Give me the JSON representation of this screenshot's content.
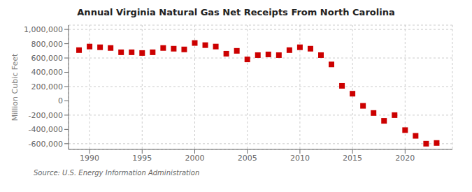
{
  "chart_data": {
    "type": "scatter",
    "title": "Annual Virginia Natural Gas Net Receipts From North Carolina",
    "y_label": "Million Cubic Feet",
    "annotations": [
      "Source: U.S. Energy Information Administration"
    ],
    "x": [
      1989,
      1990,
      1991,
      1992,
      1993,
      1994,
      1995,
      1996,
      1997,
      1998,
      1999,
      2000,
      2001,
      2002,
      2003,
      2004,
      2005,
      2006,
      2007,
      2008,
      2009,
      2010,
      2011,
      2012,
      2013,
      2014,
      2015,
      2016,
      2017,
      2018,
      2019,
      2020,
      2021,
      2022,
      2023
    ],
    "values": [
      710000,
      760000,
      750000,
      740000,
      680000,
      680000,
      670000,
      680000,
      740000,
      730000,
      720000,
      810000,
      780000,
      760000,
      660000,
      700000,
      580000,
      640000,
      650000,
      640000,
      710000,
      750000,
      730000,
      640000,
      510000,
      210000,
      100000,
      -70000,
      -170000,
      -280000,
      -200000,
      -410000,
      -490000,
      -600000,
      -590000
    ],
    "color": "#cc0000",
    "marker": "square",
    "xlim": [
      1988.0,
      2024.5
    ],
    "xticks": [
      1990,
      1995,
      2000,
      2005,
      2010,
      2015,
      2020
    ],
    "ylim": [
      -680000,
      1060000
    ],
    "yticks": [
      {
        "value": -600000,
        "label": "-600,000"
      },
      {
        "value": -400000,
        "label": "-400,000"
      },
      {
        "value": -200000,
        "label": "-200,000"
      },
      0,
      {
        "value": 200000,
        "label": "200,000"
      },
      {
        "value": 400000,
        "label": "400,000"
      },
      {
        "value": 600000,
        "label": "600,000"
      },
      {
        "value": 800000,
        "label": "800,000"
      },
      {
        "value": 1000000,
        "label": "1,000,000"
      }
    ],
    "grid": true
  }
}
